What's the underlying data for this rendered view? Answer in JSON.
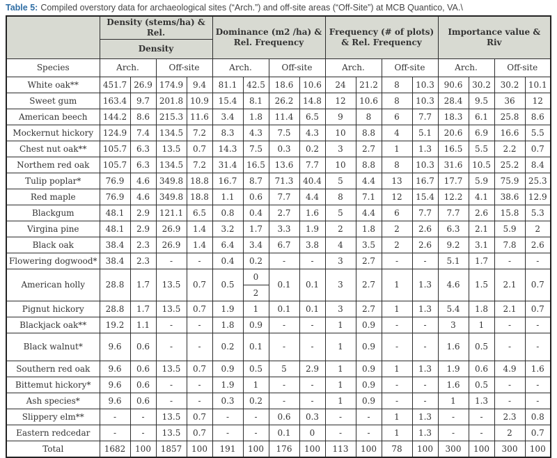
{
  "caption": {
    "label": "Table 5:",
    "text": "Compiled overstory data for archaeological sites (“Arch.”) and off-site areas (“Off-Site”) at MCB Quantico, VA.\\"
  },
  "table": {
    "header_bg": "#d8dad2",
    "border_color": "#2b2b2b",
    "caption_accent_color": "#2e6da4",
    "groups": [
      {
        "line1": "Density (stems/ha) & Rel.",
        "line2": "Density"
      },
      {
        "label": "Dominance (m2 /ha) & Rel. Frequency"
      },
      {
        "label": "Frequency (# of plots) & Rel. Frequency"
      },
      {
        "label": "Importance value & Riv"
      }
    ],
    "subheaders": {
      "species": "Species",
      "arch": "Arch.",
      "offsite": "Off-site"
    },
    "rows": [
      {
        "species": "White oak**",
        "values": [
          451.7,
          26.9,
          174.9,
          9.4,
          81.1,
          42.5,
          18.6,
          10.6,
          24,
          21.2,
          8,
          10.3,
          90.6,
          30.2,
          30.2,
          10.1
        ]
      },
      {
        "species": "Sweet gum",
        "values": [
          163.4,
          9.7,
          201.8,
          10.9,
          15.4,
          8.1,
          26.2,
          14.8,
          12,
          10.6,
          8,
          10.3,
          28.4,
          9.5,
          36,
          12
        ]
      },
      {
        "species": "American beech",
        "values": [
          144.2,
          8.6,
          215.3,
          11.6,
          3.4,
          1.8,
          11.4,
          6.5,
          9,
          8,
          6,
          7.7,
          18.3,
          6.1,
          25.8,
          8.6
        ]
      },
      {
        "species": "Mockernut hickory",
        "values": [
          124.9,
          7.4,
          134.5,
          7.2,
          8.3,
          4.3,
          7.5,
          4.3,
          10,
          8.8,
          4,
          5.1,
          20.6,
          6.9,
          16.6,
          5.5
        ]
      },
      {
        "species": "Chest nut oak**",
        "values": [
          105.7,
          6.3,
          13.5,
          0.7,
          14.3,
          7.5,
          0.3,
          0.2,
          3,
          2.7,
          1,
          1.3,
          16.5,
          5.5,
          2.2,
          0.7
        ]
      },
      {
        "species": "Northem red oak",
        "values": [
          105.7,
          6.3,
          134.5,
          7.2,
          31.4,
          16.5,
          13.6,
          7.7,
          10,
          8.8,
          8,
          10.3,
          31.6,
          10.5,
          25.2,
          8.4
        ]
      },
      {
        "species": "Tulip poplar*",
        "values": [
          76.9,
          4.6,
          349.8,
          18.8,
          16.7,
          8.7,
          71.3,
          40.4,
          5,
          4.4,
          13,
          16.7,
          17.7,
          5.9,
          75.9,
          25.3
        ]
      },
      {
        "species": "Red maple",
        "values": [
          76.9,
          4.6,
          349.8,
          18.8,
          1.1,
          0.6,
          7.7,
          4.4,
          8,
          7.1,
          12,
          15.4,
          12.2,
          4.1,
          38.6,
          12.9
        ]
      },
      {
        "species": "Blackgum",
        "values": [
          48.1,
          2.9,
          121.1,
          6.5,
          0.8,
          0.4,
          2.7,
          1.6,
          5,
          4.4,
          6,
          7.7,
          7.7,
          2.6,
          15.8,
          5.3
        ]
      },
      {
        "species": "Virgina pine",
        "values": [
          48.1,
          2.9,
          26.9,
          1.4,
          3.2,
          1.7,
          3.3,
          1.9,
          2,
          1.8,
          2,
          2.6,
          6.3,
          2.1,
          5.9,
          2
        ]
      },
      {
        "species": "Black oak",
        "values": [
          38.4,
          2.3,
          26.9,
          1.4,
          6.4,
          3.4,
          6.7,
          3.8,
          4,
          3.5,
          2,
          2.6,
          9.2,
          3.1,
          7.8,
          2.6
        ]
      },
      {
        "species": "Flowering dogwood*",
        "values": [
          38.4,
          2.3,
          "-",
          "-",
          0.4,
          0.2,
          "-",
          "-",
          3,
          2.7,
          "-",
          "-",
          5.1,
          1.7,
          "-",
          "-"
        ]
      },
      {
        "species": "American holly",
        "values": [
          28.8,
          1.7,
          13.5,
          0.7,
          0.5,
          null,
          0.1,
          0.1,
          3,
          2.7,
          1,
          1.3,
          4.6,
          1.5,
          2.1,
          0.7
        ],
        "split": {
          "col": 5,
          "top": "0",
          "bottom": "2"
        }
      },
      {
        "species": "Pignut hickory",
        "values": [
          28.8,
          1.7,
          13.5,
          0.7,
          1.9,
          1,
          0.1,
          0.1,
          3,
          2.7,
          1,
          1.3,
          5.4,
          1.8,
          2.1,
          0.7
        ]
      },
      {
        "species": "Blackjack oak**",
        "values": [
          19.2,
          1.1,
          "-",
          "-",
          1.8,
          0.9,
          "-",
          "-",
          1,
          0.9,
          "-",
          "-",
          3,
          1,
          "-",
          "-"
        ]
      },
      {
        "species": "Black walnut*",
        "values": [
          9.6,
          0.6,
          "-",
          "-",
          0.2,
          0.1,
          "-",
          "-",
          1,
          0.9,
          "-",
          "-",
          1.6,
          0.5,
          "-",
          "-"
        ],
        "tall": true
      },
      {
        "species": "Southern red oak",
        "values": [
          9.6,
          0.6,
          13.5,
          0.7,
          0.9,
          0.5,
          5,
          2.9,
          1,
          0.9,
          1,
          1.3,
          1.9,
          0.6,
          4.9,
          1.6
        ]
      },
      {
        "species": "Bittemut hickory*",
        "values": [
          9.6,
          0.6,
          "-",
          "-",
          1.9,
          1,
          "-",
          "-",
          1,
          0.9,
          "-",
          "-",
          1.6,
          0.5,
          "-",
          "-"
        ]
      },
      {
        "species": "Ash species*",
        "values": [
          9.6,
          0.6,
          "-",
          "-",
          0.3,
          0.2,
          "-",
          "-",
          1,
          0.9,
          "-",
          "-",
          1,
          1.3,
          "-",
          "-"
        ]
      },
      {
        "species": "Slippery elm**",
        "values": [
          "-",
          "-",
          13.5,
          0.7,
          "-",
          "-",
          0.6,
          0.3,
          "-",
          "-",
          1,
          1.3,
          "-",
          "-",
          2.3,
          0.8
        ]
      },
      {
        "species": "Eastern redcedar",
        "values": [
          "-",
          "-",
          13.5,
          0.7,
          "-",
          "-",
          0.1,
          0,
          "-",
          "-",
          1,
          1.3,
          "-",
          "-",
          2,
          0.7
        ]
      },
      {
        "species": "Total",
        "values": [
          1682,
          100,
          1857,
          100,
          191,
          100,
          176,
          100,
          113,
          100,
          78,
          100,
          300,
          100,
          300,
          100
        ]
      }
    ]
  }
}
